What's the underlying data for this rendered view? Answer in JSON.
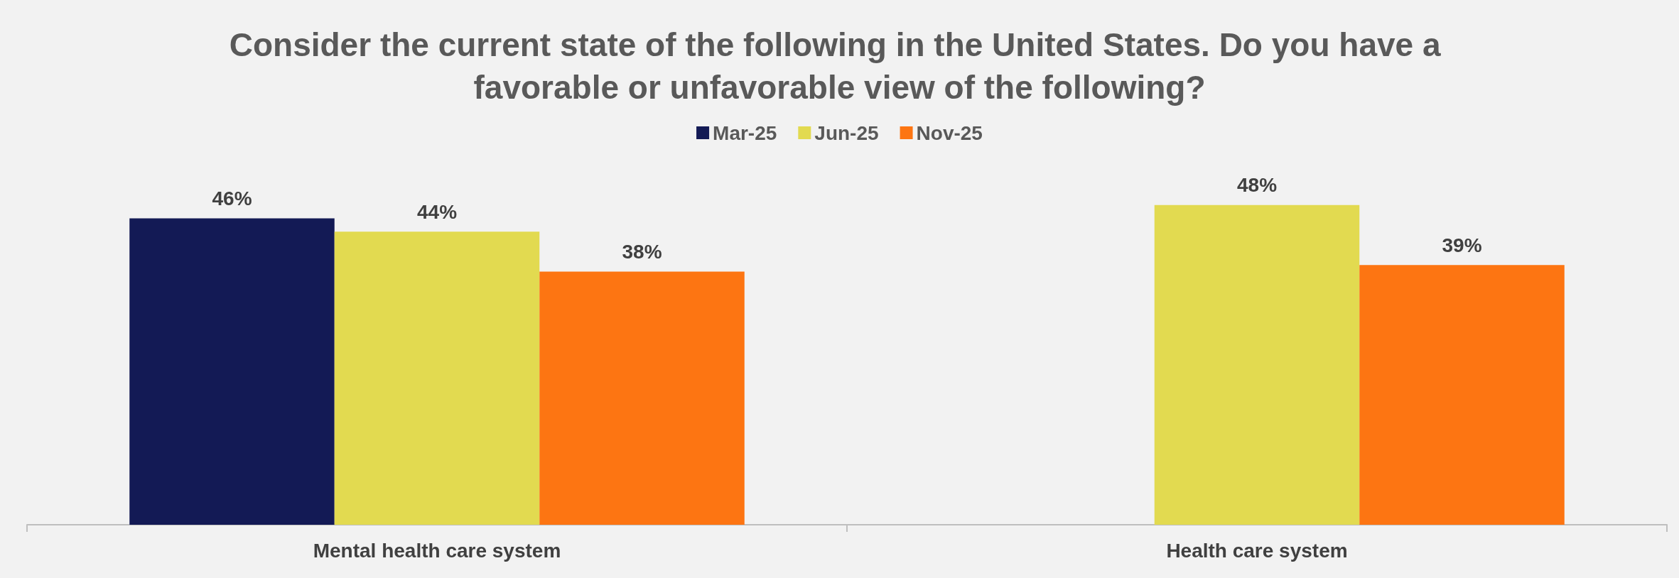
{
  "chart_data": {
    "type": "bar",
    "title": "Consider the current state of the following in the United States. Do you have a favorable or unfavorable view of the following?",
    "categories": [
      "Mental health care system",
      "Health care system"
    ],
    "series": [
      {
        "name": "Mar-25",
        "color": "#131a55",
        "values": [
          46,
          null
        ],
        "value_labels": [
          "46%",
          null
        ]
      },
      {
        "name": "Jun-25",
        "color": "#e2da50",
        "values": [
          44,
          48
        ],
        "value_labels": [
          "44%",
          "48%"
        ]
      },
      {
        "name": "Nov-25",
        "color": "#fd7512",
        "values": [
          38,
          39
        ],
        "value_labels": [
          "38%",
          "39%"
        ]
      }
    ],
    "legend": "top",
    "grid": false
  }
}
